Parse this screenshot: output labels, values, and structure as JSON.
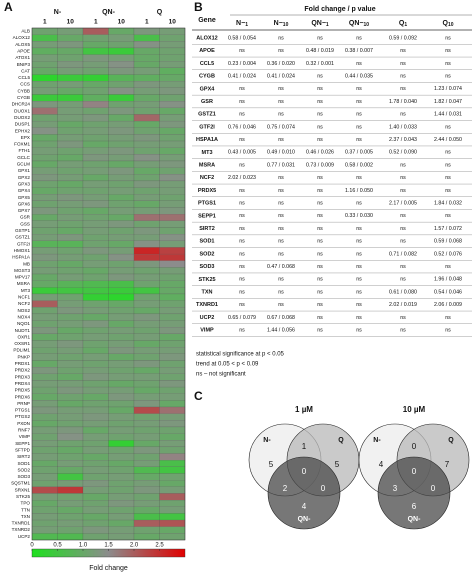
{
  "panel_a": {
    "label": "A",
    "groups": [
      "N-",
      "QN-",
      "Q"
    ],
    "doses": [
      "1",
      "10",
      "1",
      "10",
      "1",
      "10"
    ],
    "genes": [
      "ALB",
      "ALOX12",
      "ALOX5",
      "APOE",
      "ATOX1",
      "BNIP3",
      "CAT",
      "CCL5",
      "CCS",
      "CYBB",
      "CYGB",
      "DHCR24",
      "DUOX1",
      "DUOX2",
      "DUSP1",
      "EPHX2",
      "EPX",
      "FOXM1",
      "FTH1",
      "GCLC",
      "GCLM",
      "GPX1",
      "GPX2",
      "GPX3",
      "GPX4",
      "GPX5",
      "GPX6",
      "GPX7",
      "GSR",
      "GSS",
      "GSTP1",
      "GSTZ1",
      "GTF2I",
      "HMOX1",
      "HSPA1A",
      "MB",
      "MGST3",
      "MPV17",
      "MSRA",
      "MT3",
      "NCF1",
      "NCF2",
      "NOS2",
      "NOX4",
      "NQO1",
      "NUDT1",
      "OXR1",
      "OXSR1",
      "PDLIM1",
      "PNKP",
      "PRDX1",
      "PRDX2",
      "PRDX3",
      "PRDX4",
      "PRDX5",
      "PRDX6",
      "PRNP",
      "PTGS1",
      "PTGS2",
      "PXDN",
      "RNF7",
      "VIMP",
      "SEPP1",
      "SFTPD",
      "SIRT2",
      "SOD1",
      "SOD2",
      "SOD3",
      "SQSTM1",
      "SRXN1",
      "STK25",
      "TPO",
      "TTN",
      "TXN",
      "TXNRD1",
      "TXNRD2",
      "UCP2"
    ],
    "values": [
      [
        1.1,
        1.2,
        2.0,
        1.0,
        1.3,
        1.2
      ],
      [
        0.6,
        1.0,
        1.1,
        1.2,
        0.6,
        1.1
      ],
      [
        1.2,
        1.3,
        1.0,
        1.1,
        1.4,
        1.2
      ],
      [
        0.9,
        1.0,
        0.5,
        0.4,
        1.0,
        1.1
      ],
      [
        1.2,
        1.1,
        1.3,
        1.2,
        1.0,
        1.1
      ],
      [
        1.1,
        1.3,
        1.2,
        1.4,
        1.0,
        1.2
      ],
      [
        1.0,
        1.2,
        1.1,
        1.3,
        1.2,
        0.9
      ],
      [
        0.2,
        0.4,
        0.3,
        0.8,
        0.9,
        1.0
      ],
      [
        1.1,
        1.2,
        1.0,
        1.1,
        1.3,
        1.2
      ],
      [
        1.2,
        1.0,
        1.1,
        1.4,
        1.2,
        1.3
      ],
      [
        0.4,
        0.4,
        0.9,
        0.4,
        1.0,
        1.1
      ],
      [
        1.3,
        1.2,
        1.6,
        1.1,
        1.2,
        1.4
      ],
      [
        1.8,
        1.2,
        1.1,
        1.3,
        1.1,
        1.0
      ],
      [
        1.1,
        1.2,
        1.3,
        1.0,
        1.9,
        1.2
      ],
      [
        1.2,
        1.0,
        1.1,
        1.2,
        1.0,
        1.3
      ],
      [
        1.4,
        1.1,
        1.2,
        1.3,
        1.1,
        1.0
      ],
      [
        1.0,
        1.2,
        1.1,
        1.2,
        1.3,
        1.1
      ],
      [
        1.1,
        1.3,
        1.0,
        1.1,
        1.2,
        1.2
      ],
      [
        1.2,
        1.1,
        1.2,
        1.3,
        1.1,
        1.0
      ],
      [
        1.1,
        1.0,
        1.3,
        1.2,
        1.4,
        1.2
      ],
      [
        1.0,
        1.2,
        1.1,
        1.0,
        1.2,
        1.3
      ],
      [
        1.2,
        1.1,
        1.2,
        1.3,
        1.0,
        1.1
      ],
      [
        1.3,
        1.2,
        1.0,
        1.2,
        1.1,
        1.4
      ],
      [
        1.1,
        1.0,
        1.2,
        1.1,
        1.3,
        1.2
      ],
      [
        1.0,
        1.1,
        1.1,
        1.2,
        1.1,
        1.2
      ],
      [
        1.2,
        1.3,
        1.2,
        1.0,
        1.2,
        1.1
      ],
      [
        1.1,
        1.2,
        1.3,
        1.1,
        1.0,
        1.2
      ],
      [
        1.3,
        1.1,
        1.0,
        1.2,
        1.2,
        1.3
      ],
      [
        1.0,
        1.2,
        1.1,
        1.0,
        1.8,
        1.8
      ],
      [
        1.2,
        1.1,
        1.2,
        1.3,
        1.1,
        1.2
      ],
      [
        1.1,
        1.0,
        1.2,
        1.1,
        1.3,
        1.1
      ],
      [
        1.2,
        1.3,
        1.1,
        1.2,
        1.2,
        1.4
      ],
      [
        0.8,
        0.8,
        1.1,
        1.0,
        1.4,
        1.2
      ],
      [
        1.2,
        1.1,
        1.3,
        1.2,
        2.6,
        2.3
      ],
      [
        1.3,
        1.2,
        1.1,
        1.4,
        2.4,
        2.4
      ],
      [
        1.1,
        1.0,
        1.2,
        1.1,
        1.3,
        1.5
      ],
      [
        1.2,
        1.1,
        1.0,
        1.2,
        1.1,
        1.2
      ],
      [
        1.0,
        1.2,
        1.1,
        1.3,
        1.2,
        1.1
      ],
      [
        1.0,
        0.8,
        0.7,
        0.6,
        1.1,
        1.0
      ],
      [
        0.4,
        0.5,
        0.5,
        0.4,
        0.5,
        1.0
      ],
      [
        1.2,
        1.1,
        0.3,
        0.2,
        1.1,
        0.9
      ],
      [
        2.0,
        1.2,
        1.1,
        1.0,
        1.2,
        1.1
      ],
      [
        1.1,
        1.3,
        1.2,
        1.1,
        1.0,
        1.2
      ],
      [
        1.2,
        1.1,
        1.0,
        1.2,
        1.3,
        1.1
      ],
      [
        1.1,
        1.2,
        1.3,
        1.0,
        1.2,
        1.2
      ],
      [
        1.3,
        1.0,
        1.1,
        1.2,
        1.1,
        1.3
      ],
      [
        1.0,
        1.1,
        1.2,
        1.1,
        1.2,
        1.0
      ],
      [
        1.2,
        1.3,
        1.1,
        1.2,
        1.0,
        1.1
      ],
      [
        1.1,
        1.2,
        1.0,
        1.3,
        1.2,
        1.2
      ],
      [
        1.2,
        1.1,
        1.2,
        1.0,
        1.1,
        1.3
      ],
      [
        1.0,
        1.2,
        1.1,
        1.2,
        1.3,
        1.1
      ],
      [
        1.3,
        1.1,
        1.2,
        1.1,
        1.0,
        1.2
      ],
      [
        1.1,
        1.0,
        1.3,
        1.2,
        1.2,
        1.1
      ],
      [
        1.2,
        1.2,
        1.1,
        1.0,
        1.1,
        1.3
      ],
      [
        1.1,
        1.3,
        1.2,
        1.2,
        1.0,
        1.1
      ],
      [
        1.0,
        1.1,
        1.0,
        1.3,
        1.2,
        1.2
      ],
      [
        1.2,
        1.0,
        1.1,
        1.1,
        1.3,
        1.0
      ],
      [
        1.3,
        1.2,
        1.2,
        1.0,
        2.2,
        1.8
      ],
      [
        1.1,
        1.2,
        1.3,
        1.2,
        1.1,
        1.2
      ],
      [
        1.0,
        1.1,
        1.2,
        1.1,
        1.2,
        1.3
      ],
      [
        1.2,
        1.3,
        1.0,
        1.2,
        1.1,
        1.1
      ],
      [
        1.1,
        1.4,
        1.2,
        1.1,
        1.2,
        1.0
      ],
      [
        1.2,
        1.1,
        1.1,
        0.3,
        1.0,
        1.2
      ],
      [
        1.1,
        1.0,
        1.2,
        1.1,
        1.3,
        1.1
      ],
      [
        1.2,
        1.1,
        1.0,
        1.2,
        1.1,
        1.6
      ],
      [
        1.0,
        1.2,
        1.1,
        1.0,
        1.2,
        0.6
      ],
      [
        1.1,
        1.0,
        1.2,
        1.1,
        0.7,
        0.5
      ],
      [
        1.2,
        0.5,
        1.1,
        1.2,
        1.0,
        1.1
      ],
      [
        1.1,
        1.2,
        1.3,
        1.1,
        1.2,
        1.0
      ],
      [
        2.2,
        2.4,
        1.2,
        1.1,
        1.3,
        1.2
      ],
      [
        1.2,
        1.1,
        1.0,
        1.2,
        1.1,
        2.0
      ],
      [
        1.0,
        1.2,
        1.1,
        1.3,
        1.2,
        1.1
      ],
      [
        1.1,
        1.0,
        1.2,
        1.1,
        1.0,
        1.2
      ],
      [
        1.2,
        1.1,
        1.0,
        1.2,
        0.6,
        0.5
      ],
      [
        1.1,
        1.2,
        1.1,
        1.0,
        2.0,
        2.1
      ],
      [
        1.2,
        1.1,
        1.3,
        1.2,
        1.1,
        1.0
      ],
      [
        0.7,
        0.7,
        1.1,
        1.2,
        1.0,
        1.1
      ]
    ],
    "colorbar": {
      "label": "Fold change",
      "lim": [
        0,
        3
      ],
      "colors": [
        "#1ee01e",
        "#8c8c8c",
        "#e00000"
      ],
      "ticks": [
        0,
        {
          "value": 0.5,
          "label": "0.5"
        },
        {
          "value": 1,
          "label": "1.0"
        },
        {
          "value": 1.5,
          "label": "1.5"
        },
        {
          "value": 2,
          "label": "2.0"
        },
        {
          "value": 2.5,
          "label": "2.5"
        }
      ]
    }
  },
  "panel_b": {
    "label": "B",
    "title": "Fold change / p value",
    "gene_header": "Gene",
    "columns": [
      {
        "base": "N−",
        "sub": "1"
      },
      {
        "base": "N−",
        "sub": "10"
      },
      {
        "base": "QN−",
        "sub": "1"
      },
      {
        "base": "QN−",
        "sub": "10"
      },
      {
        "base": "Q",
        "sub": "1"
      },
      {
        "base": "Q",
        "sub": "10"
      }
    ],
    "rows": [
      {
        "gene": "ALOX12",
        "cells": [
          "0.58 / 0.054",
          "ns",
          "ns",
          "ns",
          "0.59 / 0.092",
          "ns"
        ]
      },
      {
        "gene": "APOE",
        "cells": [
          "ns",
          "ns",
          "0.48 / 0.019",
          "0.38 / 0.007",
          "ns",
          "ns"
        ]
      },
      {
        "gene": "CCL5",
        "cells": [
          "0.23 / 0.004",
          "0.36 / 0.020",
          "0.32 / 0.001",
          "ns",
          "ns",
          "ns"
        ]
      },
      {
        "gene": "CYGB",
        "cells": [
          "0.41 / 0.024",
          "0.41 / 0.024",
          "ns",
          "0.44 / 0.035",
          "ns",
          "ns"
        ]
      },
      {
        "gene": "GPX4",
        "cells": [
          "ns",
          "ns",
          "ns",
          "ns",
          "ns",
          "1.23 / 0.074"
        ]
      },
      {
        "gene": "GSR",
        "cells": [
          "ns",
          "ns",
          "ns",
          "ns",
          "1.78 / 0.040",
          "1.82 / 0.047"
        ]
      },
      {
        "gene": "GSTZ1",
        "cells": [
          "ns",
          "ns",
          "ns",
          "ns",
          "ns",
          "1.44 / 0.031"
        ]
      },
      {
        "gene": "GTF2I",
        "cells": [
          "0.76 / 0.046",
          "0.75 / 0.074",
          "ns",
          "ns",
          "1.40 / 0.033",
          "ns"
        ]
      },
      {
        "gene": "HSPA1A",
        "cells": [
          "ns",
          "ns",
          "ns",
          "ns",
          "2.37 / 0.043",
          "2.44 / 0.050"
        ]
      },
      {
        "gene": "MT3",
        "cells": [
          "0.43 / 0.005",
          "0.49 / 0.010",
          "0.46 / 0.026",
          "0.37 / 0.005",
          "0.52 / 0.090",
          "ns"
        ]
      },
      {
        "gene": "MSRA",
        "cells": [
          "ns",
          "0.77 / 0.031",
          "0.73 / 0.009",
          "0.58 / 0.002",
          "ns",
          "ns"
        ]
      },
      {
        "gene": "NCF2",
        "cells": [
          "2.02 / 0.023",
          "ns",
          "ns",
          "ns",
          "ns",
          "ns"
        ]
      },
      {
        "gene": "PRDX5",
        "cells": [
          "ns",
          "ns",
          "ns",
          "1.16 / 0.050",
          "ns",
          "ns"
        ]
      },
      {
        "gene": "PTGS1",
        "cells": [
          "ns",
          "ns",
          "ns",
          "ns",
          "2.17 / 0.005",
          "1.84 / 0.032"
        ]
      },
      {
        "gene": "SEPP1",
        "cells": [
          "ns",
          "ns",
          "ns",
          "0.33 / 0.030",
          "ns",
          "ns"
        ]
      },
      {
        "gene": "SIRT2",
        "cells": [
          "ns",
          "ns",
          "ns",
          "ns",
          "ns",
          "1.57 / 0.072"
        ]
      },
      {
        "gene": "SOD1",
        "cells": [
          "ns",
          "ns",
          "ns",
          "ns",
          "ns",
          "0.59 / 0.068"
        ]
      },
      {
        "gene": "SOD2",
        "cells": [
          "ns",
          "ns",
          "ns",
          "ns",
          "0.71 / 0.082",
          "0.52 / 0.076"
        ]
      },
      {
        "gene": "SOD3",
        "cells": [
          "ns",
          "0.47 / 0.068",
          "ns",
          "ns",
          "ns",
          "ns"
        ]
      },
      {
        "gene": "STK25",
        "cells": [
          "ns",
          "ns",
          "ns",
          "ns",
          "ns",
          "1.96 / 0.048"
        ]
      },
      {
        "gene": "TXN",
        "cells": [
          "ns",
          "ns",
          "ns",
          "ns",
          "0.61 / 0.080",
          "0.54 / 0.046"
        ]
      },
      {
        "gene": "TXNRD1",
        "cells": [
          "ns",
          "ns",
          "ns",
          "ns",
          "2.02 / 0.019",
          "2.06 / 0.009"
        ]
      },
      {
        "gene": "UCP2",
        "cells": [
          "0.65 / 0.079",
          "0.67 / 0.068",
          "ns",
          "ns",
          "ns",
          "ns"
        ]
      },
      {
        "gene": "VIMP",
        "cells": [
          "ns",
          "1.44 / 0.056",
          "ns",
          "ns",
          "ns",
          "ns"
        ]
      }
    ],
    "notes": [
      "statistical significance at p < 0.05",
      "trend at 0.05 < p < 0.09",
      "ns – not significant"
    ]
  },
  "panel_c": {
    "label": "C",
    "diagrams": [
      {
        "title": "1 µM",
        "sets": [
          "N-",
          "Q",
          "QN-"
        ],
        "regions": {
          "n": 5,
          "q": 5,
          "nq": 1,
          "all": 0,
          "nqn": 2,
          "qqn": 0,
          "qn": 4
        }
      },
      {
        "title": "10 µM",
        "sets": [
          "N-",
          "Q",
          "QN-"
        ],
        "regions": {
          "n": 4,
          "q": 7,
          "nq": 0,
          "all": 0,
          "nqn": 3,
          "qqn": 0,
          "qn": 6
        }
      }
    ]
  }
}
